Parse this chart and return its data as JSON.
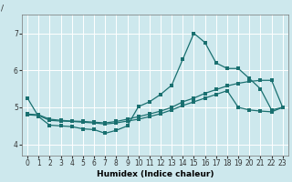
{
  "xlabel": "Humidex (Indice chaleur)",
  "ylabel": "/",
  "background_color": "#cde8ed",
  "grid_color": "#ffffff",
  "line_color": "#1a7070",
  "xlim": [
    -0.5,
    23.5
  ],
  "ylim": [
    3.7,
    7.5
  ],
  "yticks": [
    4,
    5,
    6,
    7
  ],
  "ytick_labels": [
    "4",
    "5",
    "6",
    "7"
  ],
  "xticks": [
    0,
    1,
    2,
    3,
    4,
    5,
    6,
    7,
    8,
    9,
    10,
    11,
    12,
    13,
    14,
    15,
    16,
    17,
    18,
    19,
    20,
    21,
    22,
    23
  ],
  "line1_x": [
    0,
    1,
    2,
    3,
    4,
    5,
    6,
    7,
    8,
    9,
    10,
    11,
    12,
    13,
    14,
    15,
    16,
    17,
    18,
    19,
    20,
    21,
    22,
    23
  ],
  "line1_y": [
    5.25,
    4.75,
    4.52,
    4.5,
    4.48,
    4.42,
    4.4,
    4.3,
    4.38,
    4.5,
    5.02,
    5.15,
    5.35,
    5.6,
    6.3,
    7.0,
    6.75,
    6.2,
    6.05,
    6.05,
    5.78,
    5.5,
    4.93,
    5.0
  ],
  "line2_x": [
    0,
    1,
    2,
    3,
    4,
    5,
    6,
    7,
    8,
    9,
    10,
    11,
    12,
    13,
    14,
    15,
    16,
    17,
    18,
    19,
    20,
    21,
    22,
    23
  ],
  "line2_y": [
    4.82,
    4.8,
    4.68,
    4.65,
    4.63,
    4.62,
    4.6,
    4.58,
    4.62,
    4.68,
    4.75,
    4.82,
    4.9,
    5.0,
    5.15,
    5.25,
    5.38,
    5.48,
    5.58,
    5.65,
    5.7,
    5.73,
    5.73,
    5.0
  ],
  "line3_x": [
    0,
    1,
    2,
    3,
    4,
    5,
    6,
    7,
    8,
    9,
    10,
    11,
    12,
    13,
    14,
    15,
    16,
    17,
    18,
    19,
    20,
    21,
    22,
    23
  ],
  "line3_y": [
    4.8,
    4.78,
    4.65,
    4.63,
    4.62,
    4.6,
    4.58,
    4.55,
    4.58,
    4.63,
    4.68,
    4.75,
    4.83,
    4.93,
    5.05,
    5.15,
    5.25,
    5.35,
    5.45,
    5.0,
    4.93,
    4.9,
    4.88,
    5.0
  ],
  "figsize": [
    3.2,
    2.0
  ],
  "dpi": 100,
  "label_fontsize": 6.5,
  "tick_fontsize": 5.5
}
